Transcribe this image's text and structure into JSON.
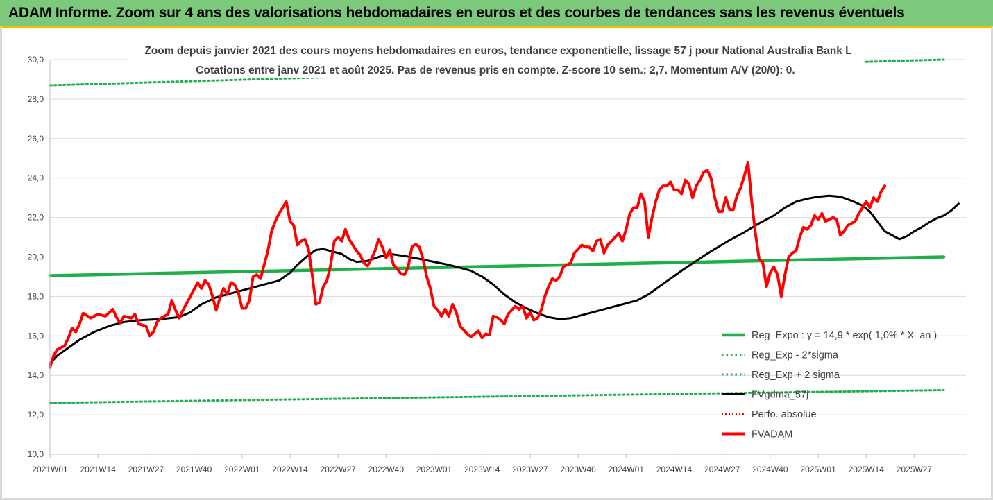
{
  "header": {
    "title": "ADAM Informe. Zoom sur 4 ans des valorisations hebdomadaires en euros et des courbes de tendances sans les revenus éventuels"
  },
  "chart_data": {
    "type": "line",
    "title": "Zoom depuis janvier 2021 des cours moyens hebdomadaires en euros, tendance exponentielle, lissage 57 j pour National Australia Bank L",
    "subtitle": "Cotations entre janv 2021 et août 2025.  Pas de revenus pris en compte. Z-score 10 sem.: 2,7. Momentum A/V (20/0): 0.",
    "ylim": [
      10,
      30
    ],
    "y_ticks": [
      "10,0",
      "12,0",
      "14,0",
      "16,0",
      "18,0",
      "20,0",
      "22,0",
      "24,0",
      "26,0",
      "28,0",
      "30,0"
    ],
    "x_ticks": [
      "2021W01",
      "2021W14",
      "2021W27",
      "2021W40",
      "2022W01",
      "2022W14",
      "2022W27",
      "2022W40",
      "2023W01",
      "2023W14",
      "2023W27",
      "2023W40",
      "2024W01",
      "2024W14",
      "2024W27",
      "2024W40",
      "2025W01",
      "2025W14",
      "2025W27"
    ],
    "grid": "horizontal",
    "legend_position": "right",
    "colors": {
      "green": "#1fb04c",
      "black": "#000000",
      "red": "#ff0000"
    },
    "series": [
      {
        "name": "Reg_Expo : y = 14,9 * exp( 1,0% *  X_an )",
        "style": "solid-green-thick",
        "points": [
          [
            0,
            19.05
          ],
          [
            242,
            20.0
          ]
        ]
      },
      {
        "name": "Reg_Exp - 2*sigma",
        "style": "dotted-green",
        "points": [
          [
            0,
            12.6
          ],
          [
            242,
            13.25
          ]
        ]
      },
      {
        "name": "Reg_Exp + 2 sigma",
        "style": "dotted-green",
        "points": [
          [
            0,
            28.7
          ],
          [
            242,
            30.0
          ]
        ]
      },
      {
        "name": "FVgdma_57j",
        "style": "solid-black",
        "points": [
          [
            0,
            14.6
          ],
          [
            2,
            15.0
          ],
          [
            5,
            15.4
          ],
          [
            8,
            15.8
          ],
          [
            12,
            16.2
          ],
          [
            16,
            16.5
          ],
          [
            20,
            16.7
          ],
          [
            25,
            16.8
          ],
          [
            30,
            16.85
          ],
          [
            35,
            16.95
          ],
          [
            38,
            17.2
          ],
          [
            41,
            17.6
          ],
          [
            45,
            17.95
          ],
          [
            50,
            18.2
          ],
          [
            55,
            18.45
          ],
          [
            58,
            18.6
          ],
          [
            62,
            18.8
          ],
          [
            65,
            19.2
          ],
          [
            67,
            19.6
          ],
          [
            70,
            20.1
          ],
          [
            72,
            20.35
          ],
          [
            74,
            20.4
          ],
          [
            76,
            20.3
          ],
          [
            79,
            20.15
          ],
          [
            81,
            19.9
          ],
          [
            83,
            19.75
          ],
          [
            86,
            19.8
          ],
          [
            89,
            20.0
          ],
          [
            92,
            20.15
          ],
          [
            96,
            20.05
          ],
          [
            100,
            19.9
          ],
          [
            104,
            19.75
          ],
          [
            108,
            19.6
          ],
          [
            111,
            19.45
          ],
          [
            114,
            19.3
          ],
          [
            117,
            19.0
          ],
          [
            120,
            18.6
          ],
          [
            123,
            18.1
          ],
          [
            126,
            17.7
          ],
          [
            129,
            17.4
          ],
          [
            132,
            17.15
          ],
          [
            135,
            16.95
          ],
          [
            138,
            16.85
          ],
          [
            141,
            16.9
          ],
          [
            144,
            17.05
          ],
          [
            147,
            17.2
          ],
          [
            150,
            17.35
          ],
          [
            153,
            17.5
          ],
          [
            156,
            17.65
          ],
          [
            159,
            17.8
          ],
          [
            162,
            18.1
          ],
          [
            165,
            18.5
          ],
          [
            168,
            18.9
          ],
          [
            171,
            19.3
          ],
          [
            173,
            19.55
          ],
          [
            175,
            19.8
          ],
          [
            177,
            20.05
          ],
          [
            180,
            20.4
          ],
          [
            184,
            20.85
          ],
          [
            188,
            21.25
          ],
          [
            192,
            21.7
          ],
          [
            196,
            22.1
          ],
          [
            199,
            22.5
          ],
          [
            202,
            22.8
          ],
          [
            205,
            22.95
          ],
          [
            208,
            23.05
          ],
          [
            211,
            23.1
          ],
          [
            214,
            23.05
          ],
          [
            217,
            22.85
          ],
          [
            220,
            22.6
          ],
          [
            222,
            22.3
          ],
          [
            224,
            21.8
          ],
          [
            226,
            21.3
          ],
          [
            228,
            21.1
          ],
          [
            230,
            20.9
          ],
          [
            232,
            21.05
          ],
          [
            234,
            21.3
          ],
          [
            236,
            21.5
          ],
          [
            238,
            21.75
          ],
          [
            240,
            21.95
          ],
          [
            242,
            22.1
          ],
          [
            244,
            22.35
          ],
          [
            246,
            22.7
          ]
        ]
      },
      {
        "name": "Perfo. absolue",
        "style": "dotted-red",
        "points": []
      },
      {
        "name": "FVADAM",
        "style": "solid-red-thick",
        "points": [
          [
            0,
            14.4
          ],
          [
            1,
            15.0
          ],
          [
            2,
            15.3
          ],
          [
            4,
            15.5
          ],
          [
            5,
            15.9
          ],
          [
            6,
            16.4
          ],
          [
            7,
            16.2
          ],
          [
            8,
            16.6
          ],
          [
            9,
            17.15
          ],
          [
            11,
            16.9
          ],
          [
            13,
            17.1
          ],
          [
            15,
            17.0
          ],
          [
            17,
            17.35
          ],
          [
            18,
            16.95
          ],
          [
            19,
            16.65
          ],
          [
            20,
            17.0
          ],
          [
            22,
            16.9
          ],
          [
            23,
            17.1
          ],
          [
            24,
            16.6
          ],
          [
            26,
            16.5
          ],
          [
            27,
            16.0
          ],
          [
            28,
            16.2
          ],
          [
            29,
            16.7
          ],
          [
            30,
            16.9
          ],
          [
            32,
            17.1
          ],
          [
            33,
            17.8
          ],
          [
            34,
            17.3
          ],
          [
            35,
            16.9
          ],
          [
            36,
            17.3
          ],
          [
            38,
            18.0
          ],
          [
            40,
            18.7
          ],
          [
            41,
            18.4
          ],
          [
            42,
            18.8
          ],
          [
            43,
            18.6
          ],
          [
            44,
            18.0
          ],
          [
            45,
            17.3
          ],
          [
            46,
            17.9
          ],
          [
            47,
            18.4
          ],
          [
            48,
            18.1
          ],
          [
            49,
            18.7
          ],
          [
            50,
            18.6
          ],
          [
            51,
            18.2
          ],
          [
            52,
            17.4
          ],
          [
            53,
            17.4
          ],
          [
            54,
            17.8
          ],
          [
            55,
            19.0
          ],
          [
            56,
            19.1
          ],
          [
            57,
            18.9
          ],
          [
            58,
            19.6
          ],
          [
            59,
            20.3
          ],
          [
            60,
            21.3
          ],
          [
            61,
            21.8
          ],
          [
            62,
            22.2
          ],
          [
            63,
            22.5
          ],
          [
            64,
            22.8
          ],
          [
            65,
            21.8
          ],
          [
            66,
            21.6
          ],
          [
            67,
            20.6
          ],
          [
            68,
            20.8
          ],
          [
            69,
            20.9
          ],
          [
            70,
            20.4
          ],
          [
            71,
            19.1
          ],
          [
            72,
            17.6
          ],
          [
            73,
            17.7
          ],
          [
            74,
            18.5
          ],
          [
            75,
            18.8
          ],
          [
            76,
            19.6
          ],
          [
            77,
            20.8
          ],
          [
            78,
            21.0
          ],
          [
            79,
            20.8
          ],
          [
            80,
            21.4
          ],
          [
            81,
            20.9
          ],
          [
            82,
            20.6
          ],
          [
            83,
            20.3
          ],
          [
            84,
            20.1
          ],
          [
            85,
            19.7
          ],
          [
            86,
            19.55
          ],
          [
            87,
            19.9
          ],
          [
            88,
            20.3
          ],
          [
            89,
            20.9
          ],
          [
            90,
            20.5
          ],
          [
            91,
            19.95
          ],
          [
            92,
            20.35
          ],
          [
            93,
            19.6
          ],
          [
            94,
            19.4
          ],
          [
            95,
            19.15
          ],
          [
            96,
            19.1
          ],
          [
            97,
            19.5
          ],
          [
            98,
            20.5
          ],
          [
            99,
            20.65
          ],
          [
            100,
            20.5
          ],
          [
            101,
            19.9
          ],
          [
            102,
            19.0
          ],
          [
            103,
            18.4
          ],
          [
            104,
            17.5
          ],
          [
            105,
            17.3
          ],
          [
            106,
            17.0
          ],
          [
            107,
            17.35
          ],
          [
            108,
            17.0
          ],
          [
            109,
            17.6
          ],
          [
            110,
            17.2
          ],
          [
            111,
            16.5
          ],
          [
            112,
            16.3
          ],
          [
            113,
            16.1
          ],
          [
            114,
            15.95
          ],
          [
            115,
            16.1
          ],
          [
            116,
            16.25
          ],
          [
            117,
            15.9
          ],
          [
            118,
            16.1
          ],
          [
            119,
            16.05
          ],
          [
            120,
            17.0
          ],
          [
            121,
            16.95
          ],
          [
            122,
            16.8
          ],
          [
            123,
            16.6
          ],
          [
            124,
            17.1
          ],
          [
            125,
            17.3
          ],
          [
            126,
            17.5
          ],
          [
            127,
            17.35
          ],
          [
            128,
            17.5
          ],
          [
            129,
            16.9
          ],
          [
            130,
            17.2
          ],
          [
            131,
            16.8
          ],
          [
            132,
            16.9
          ],
          [
            133,
            17.3
          ],
          [
            134,
            18.0
          ],
          [
            135,
            18.5
          ],
          [
            136,
            18.9
          ],
          [
            137,
            18.8
          ],
          [
            138,
            19.0
          ],
          [
            139,
            19.5
          ],
          [
            140,
            19.6
          ],
          [
            141,
            19.7
          ],
          [
            142,
            20.2
          ],
          [
            143,
            20.4
          ],
          [
            144,
            20.6
          ],
          [
            145,
            20.5
          ],
          [
            146,
            20.5
          ],
          [
            147,
            20.3
          ],
          [
            148,
            20.8
          ],
          [
            149,
            20.9
          ],
          [
            150,
            20.2
          ],
          [
            151,
            20.6
          ],
          [
            152,
            20.8
          ],
          [
            153,
            21.0
          ],
          [
            154,
            21.2
          ],
          [
            155,
            20.8
          ],
          [
            156,
            21.4
          ],
          [
            157,
            22.2
          ],
          [
            158,
            22.5
          ],
          [
            159,
            22.5
          ],
          [
            160,
            23.2
          ],
          [
            161,
            22.8
          ],
          [
            162,
            21.0
          ],
          [
            163,
            22.0
          ],
          [
            164,
            22.8
          ],
          [
            165,
            23.4
          ],
          [
            166,
            23.6
          ],
          [
            167,
            23.6
          ],
          [
            168,
            23.8
          ],
          [
            169,
            23.4
          ],
          [
            170,
            23.4
          ],
          [
            171,
            23.2
          ],
          [
            172,
            23.9
          ],
          [
            173,
            23.7
          ],
          [
            174,
            23.0
          ],
          [
            175,
            23.6
          ],
          [
            176,
            23.9
          ],
          [
            177,
            24.3
          ],
          [
            178,
            24.4
          ],
          [
            179,
            24.0
          ],
          [
            180,
            23.0
          ],
          [
            181,
            22.3
          ],
          [
            182,
            22.3
          ],
          [
            183,
            23.0
          ],
          [
            184,
            22.4
          ],
          [
            185,
            22.4
          ],
          [
            186,
            23.1
          ],
          [
            187,
            23.5
          ],
          [
            188,
            24.1
          ],
          [
            189,
            24.8
          ],
          [
            190,
            22.8
          ],
          [
            191,
            21.2
          ],
          [
            192,
            19.9
          ],
          [
            193,
            19.7
          ],
          [
            194,
            18.5
          ],
          [
            195,
            19.2
          ],
          [
            196,
            19.5
          ],
          [
            197,
            19.1
          ],
          [
            198,
            18.0
          ],
          [
            199,
            19.1
          ],
          [
            200,
            20.0
          ],
          [
            201,
            20.2
          ],
          [
            202,
            20.3
          ],
          [
            203,
            21.0
          ],
          [
            204,
            21.5
          ],
          [
            205,
            21.4
          ],
          [
            206,
            21.6
          ],
          [
            207,
            22.1
          ],
          [
            208,
            21.9
          ],
          [
            209,
            22.2
          ],
          [
            210,
            21.8
          ],
          [
            211,
            21.9
          ],
          [
            212,
            22.0
          ],
          [
            213,
            21.9
          ],
          [
            214,
            21.1
          ],
          [
            215,
            21.3
          ],
          [
            216,
            21.6
          ],
          [
            217,
            21.7
          ],
          [
            218,
            21.8
          ],
          [
            219,
            22.2
          ],
          [
            220,
            22.5
          ],
          [
            221,
            22.8
          ],
          [
            222,
            22.5
          ],
          [
            223,
            23.0
          ],
          [
            224,
            22.8
          ],
          [
            225,
            23.3
          ],
          [
            226,
            23.6
          ]
        ]
      }
    ]
  }
}
